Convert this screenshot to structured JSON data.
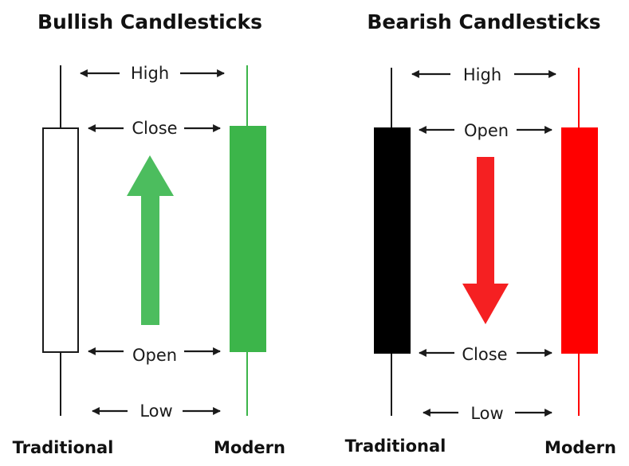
{
  "colors": {
    "bull_modern": "#3cb54a",
    "bull_arrow": "#4cbd5e",
    "bear_traditional": "#000000",
    "bear_modern": "#ff0000",
    "bear_arrow": "#f52022",
    "outline": "#1a1a1a"
  },
  "bullish": {
    "title": "Bullish Candlesticks",
    "traditional_label": "Traditional",
    "modern_label": "Modern",
    "labels": {
      "high": "High",
      "close": "Close",
      "open": "Open",
      "low": "Low"
    },
    "arrow_direction": "up"
  },
  "bearish": {
    "title": "Bearish Candlesticks",
    "traditional_label": "Traditional",
    "modern_label": "Modern",
    "labels": {
      "high": "High",
      "open": "Open",
      "close": "Close",
      "low": "Low"
    },
    "arrow_direction": "down"
  }
}
